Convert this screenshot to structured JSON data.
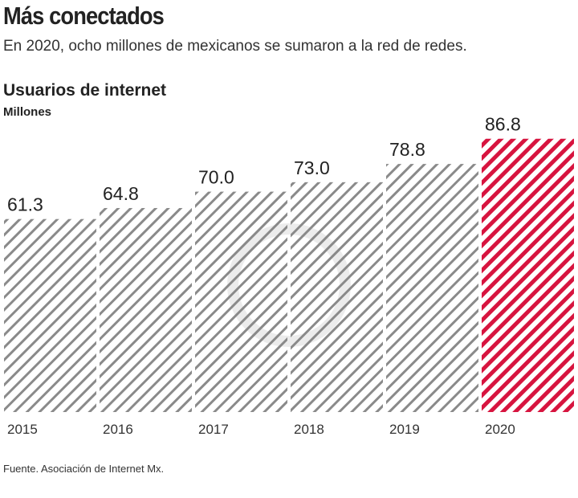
{
  "title": "Más conectados",
  "subtitle": "En 2020, ocho millones de mexicanos se sumaron a la red de redes.",
  "source": "Fuente. Asociación de Internet Mx.",
  "chart_data": {
    "type": "bar",
    "title": "Usuarios de internet",
    "ylabel": "Millones",
    "xlabel": "",
    "categories": [
      "2015",
      "2016",
      "2017",
      "2018",
      "2019",
      "2020"
    ],
    "values": [
      61.3,
      64.8,
      70.0,
      73.0,
      78.8,
      86.8
    ],
    "value_labels": [
      "61.3",
      "64.8",
      "70.0",
      "73.0",
      "78.8",
      "86.8"
    ],
    "ylim": [
      0,
      90
    ],
    "grid": false,
    "colors": {
      "default": "#8a8a8a",
      "highlight": "#d7143f"
    },
    "highlight": "2020"
  }
}
